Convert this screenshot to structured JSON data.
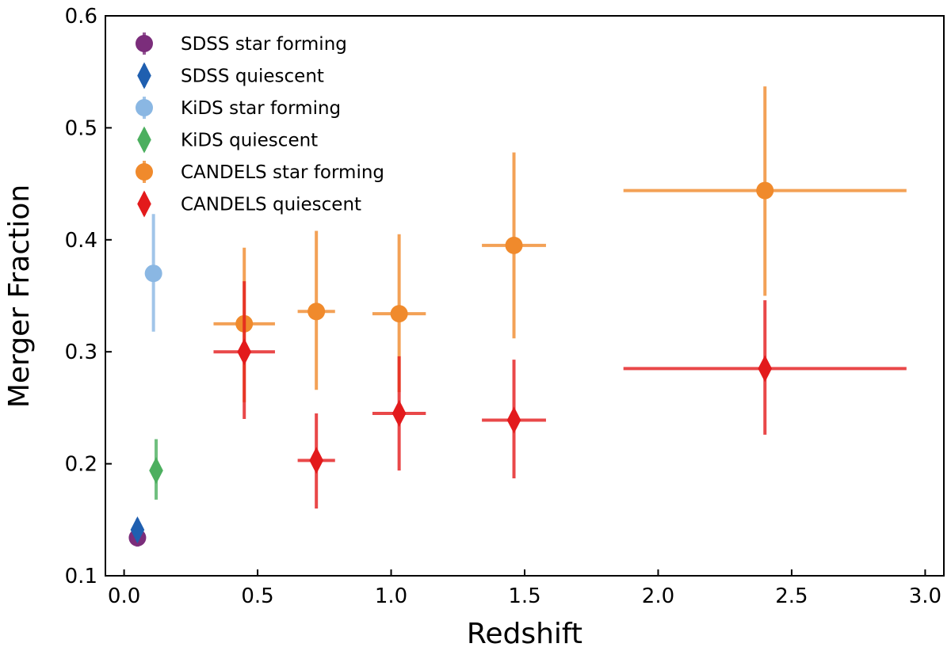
{
  "chart_data": {
    "type": "scatter",
    "title": "",
    "xlabel": "Redshift",
    "ylabel": "Merger Fraction",
    "xlim": [
      -0.07,
      3.07
    ],
    "ylim": [
      0.1,
      0.6
    ],
    "xticks": [
      "0.0",
      "0.5",
      "1.0",
      "1.5",
      "2.0",
      "2.5",
      "3.0"
    ],
    "yticks": [
      "0.1",
      "0.2",
      "0.3",
      "0.4",
      "0.5",
      "0.6"
    ],
    "grid": false,
    "legend_position": "top-left",
    "series": [
      {
        "name": "SDSS star forming",
        "marker": "circle",
        "color": "#7b2d7b",
        "points": [
          {
            "x": 0.05,
            "y": 0.134,
            "xerr": 0.0,
            "yerr_low": 0.008,
            "yerr_high": 0.008
          }
        ]
      },
      {
        "name": "SDSS quiescent",
        "marker": "diamond",
        "color": "#1f5fb0",
        "points": [
          {
            "x": 0.05,
            "y": 0.141,
            "xerr": 0.0,
            "yerr_low": 0.01,
            "yerr_high": 0.01
          }
        ]
      },
      {
        "name": "KiDS star forming",
        "marker": "circle",
        "color": "#8ab7e3",
        "points": [
          {
            "x": 0.11,
            "y": 0.37,
            "xerr": 0.0,
            "yerr_low": 0.052,
            "yerr_high": 0.053
          }
        ]
      },
      {
        "name": "KiDS quiescent",
        "marker": "diamond",
        "color": "#4caf5f",
        "points": [
          {
            "x": 0.12,
            "y": 0.194,
            "xerr": 0.0,
            "yerr_low": 0.026,
            "yerr_high": 0.028
          }
        ]
      },
      {
        "name": "CANDELS star forming",
        "marker": "circle",
        "color": "#f08a2c",
        "points": [
          {
            "x": 0.45,
            "y": 0.325,
            "xerr": 0.115,
            "yerr_low": 0.07,
            "yerr_high": 0.068
          },
          {
            "x": 0.72,
            "y": 0.336,
            "xerr": 0.07,
            "yerr_low": 0.07,
            "yerr_high": 0.072
          },
          {
            "x": 1.03,
            "y": 0.334,
            "xerr": 0.1,
            "yerr_low": 0.07,
            "yerr_high": 0.071
          },
          {
            "x": 1.46,
            "y": 0.395,
            "xerr": 0.12,
            "yerr_low": 0.083,
            "yerr_high": 0.083
          },
          {
            "x": 2.4,
            "y": 0.444,
            "xerr": 0.53,
            "yerr_low": 0.094,
            "yerr_high": 0.093
          }
        ]
      },
      {
        "name": "CANDELS quiescent",
        "marker": "diamond",
        "color": "#e31a1c",
        "points": [
          {
            "x": 0.45,
            "y": 0.3,
            "xerr": 0.115,
            "yerr_low": 0.06,
            "yerr_high": 0.063
          },
          {
            "x": 0.72,
            "y": 0.203,
            "xerr": 0.07,
            "yerr_low": 0.043,
            "yerr_high": 0.042
          },
          {
            "x": 1.03,
            "y": 0.245,
            "xerr": 0.1,
            "yerr_low": 0.051,
            "yerr_high": 0.051
          },
          {
            "x": 1.46,
            "y": 0.239,
            "xerr": 0.12,
            "yerr_low": 0.052,
            "yerr_high": 0.054
          },
          {
            "x": 2.4,
            "y": 0.285,
            "xerr": 0.53,
            "yerr_low": 0.059,
            "yerr_high": 0.061
          }
        ]
      }
    ]
  }
}
